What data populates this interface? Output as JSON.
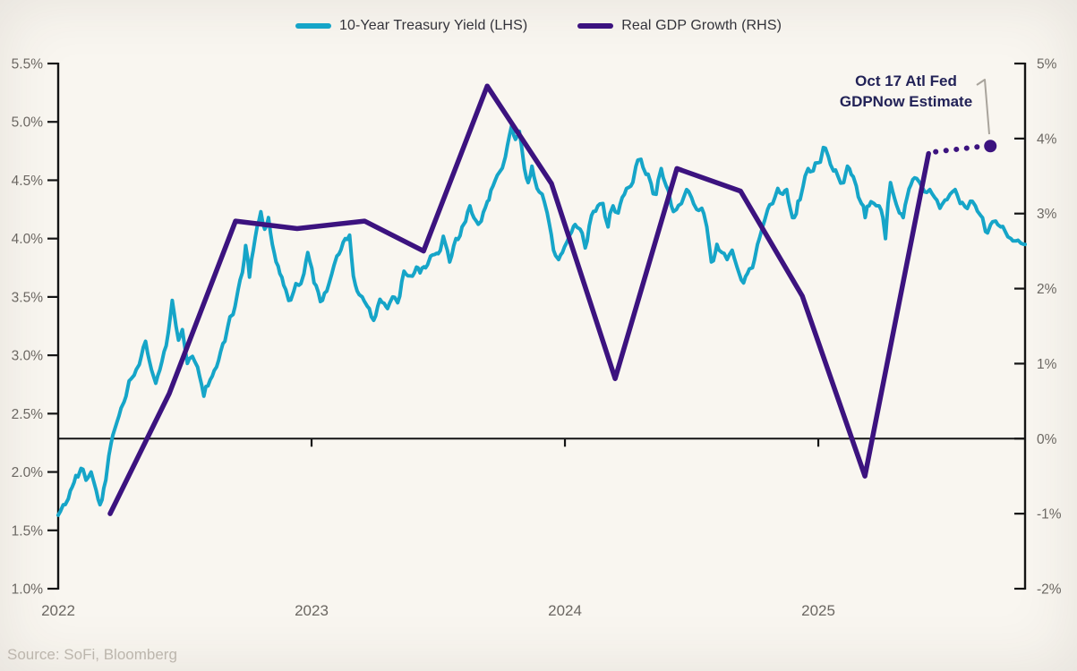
{
  "legend": {
    "items": [
      {
        "label": "10-Year Treasury Yield (LHS)",
        "color": "#16a5c8"
      },
      {
        "label": "Real GDP Growth (RHS)",
        "color": "#3c137f"
      }
    ]
  },
  "annotation": {
    "line1": "Oct 17 Atl Fed",
    "line2": "GDPNow Estimate",
    "color": "#222257"
  },
  "source": {
    "text": "Source: SoFi, Bloomberg"
  },
  "chart_data": {
    "type": "line",
    "title": "",
    "background": "#f9f6f0",
    "grid": false,
    "legend_position": "top-center",
    "x_axis": {
      "domain_years_from_2022": [
        0,
        3.816
      ],
      "ticks": [
        {
          "t": 0,
          "label": "2022"
        },
        {
          "t": 1,
          "label": "2023"
        },
        {
          "t": 2,
          "label": "2024"
        },
        {
          "t": 3,
          "label": "2025"
        }
      ],
      "tick_color": "#6b6762"
    },
    "left_axis": {
      "series": "10-Year Treasury Yield (LHS)",
      "min": 1.0,
      "max": 5.5,
      "ticks": [
        {
          "v": 5.5,
          "label": "5.5%"
        },
        {
          "v": 5.0,
          "label": "5.0%"
        },
        {
          "v": 4.5,
          "label": "4.5%"
        },
        {
          "v": 4.0,
          "label": "4.0%"
        },
        {
          "v": 3.5,
          "label": "3.5%"
        },
        {
          "v": 3.0,
          "label": "3.0%"
        },
        {
          "v": 2.5,
          "label": "2.5%"
        },
        {
          "v": 2.0,
          "label": "2.0%"
        },
        {
          "v": 1.5,
          "label": "1.5%"
        },
        {
          "v": 1.0,
          "label": "1.0%"
        }
      ]
    },
    "right_axis": {
      "series": "Real GDP Growth (RHS)",
      "min": -2,
      "max": 5,
      "zero_line": true,
      "ticks": [
        {
          "v": 5,
          "label": "5%"
        },
        {
          "v": 4,
          "label": "4%"
        },
        {
          "v": 3,
          "label": "3%"
        },
        {
          "v": 2,
          "label": "2%"
        },
        {
          "v": 1,
          "label": "1%"
        },
        {
          "v": 0,
          "label": "0%"
        },
        {
          "v": -1,
          "label": "-1%"
        },
        {
          "v": -2,
          "label": "-2%"
        }
      ]
    },
    "series": [
      {
        "name": "10-Year Treasury Yield (LHS)",
        "axis": "left",
        "color": "#16a5c8",
        "style": "solid",
        "width": 4,
        "points": [
          [
            0.0,
            1.63
          ],
          [
            0.02,
            1.72
          ],
          [
            0.04,
            1.77
          ],
          [
            0.055,
            1.87
          ],
          [
            0.07,
            1.97
          ],
          [
            0.09,
            2.03
          ],
          [
            0.11,
            1.93
          ],
          [
            0.13,
            2.0
          ],
          [
            0.15,
            1.84
          ],
          [
            0.165,
            1.72
          ],
          [
            0.18,
            1.86
          ],
          [
            0.2,
            2.14
          ],
          [
            0.225,
            2.38
          ],
          [
            0.24,
            2.48
          ],
          [
            0.26,
            2.6
          ],
          [
            0.28,
            2.78
          ],
          [
            0.3,
            2.83
          ],
          [
            0.32,
            2.92
          ],
          [
            0.345,
            3.12
          ],
          [
            0.36,
            2.95
          ],
          [
            0.385,
            2.76
          ],
          [
            0.41,
            2.95
          ],
          [
            0.435,
            3.2
          ],
          [
            0.45,
            3.47
          ],
          [
            0.465,
            3.25
          ],
          [
            0.475,
            3.13
          ],
          [
            0.49,
            3.22
          ],
          [
            0.51,
            2.93
          ],
          [
            0.53,
            2.99
          ],
          [
            0.55,
            2.9
          ],
          [
            0.575,
            2.65
          ],
          [
            0.6,
            2.79
          ],
          [
            0.625,
            2.9
          ],
          [
            0.65,
            3.1
          ],
          [
            0.67,
            3.25
          ],
          [
            0.69,
            3.35
          ],
          [
            0.71,
            3.56
          ],
          [
            0.727,
            3.71
          ],
          [
            0.74,
            3.94
          ],
          [
            0.755,
            3.67
          ],
          [
            0.77,
            3.9
          ],
          [
            0.785,
            4.1
          ],
          [
            0.8,
            4.23
          ],
          [
            0.815,
            4.08
          ],
          [
            0.83,
            4.18
          ],
          [
            0.845,
            3.95
          ],
          [
            0.86,
            3.8
          ],
          [
            0.875,
            3.7
          ],
          [
            0.89,
            3.6
          ],
          [
            0.91,
            3.47
          ],
          [
            0.93,
            3.55
          ],
          [
            0.95,
            3.6
          ],
          [
            0.97,
            3.7
          ],
          [
            0.985,
            3.88
          ],
          [
            1.01,
            3.62
          ],
          [
            1.035,
            3.46
          ],
          [
            1.06,
            3.55
          ],
          [
            1.08,
            3.7
          ],
          [
            1.1,
            3.85
          ],
          [
            1.125,
            3.97
          ],
          [
            1.15,
            4.03
          ],
          [
            1.165,
            3.68
          ],
          [
            1.18,
            3.55
          ],
          [
            1.2,
            3.5
          ],
          [
            1.22,
            3.42
          ],
          [
            1.245,
            3.3
          ],
          [
            1.27,
            3.48
          ],
          [
            1.3,
            3.4
          ],
          [
            1.32,
            3.5
          ],
          [
            1.34,
            3.45
          ],
          [
            1.365,
            3.72
          ],
          [
            1.39,
            3.68
          ],
          [
            1.42,
            3.75
          ],
          [
            1.45,
            3.75
          ],
          [
            1.47,
            3.85
          ],
          [
            1.5,
            3.87
          ],
          [
            1.52,
            4.02
          ],
          [
            1.545,
            3.8
          ],
          [
            1.57,
            4.0
          ],
          [
            1.6,
            4.12
          ],
          [
            1.625,
            4.28
          ],
          [
            1.65,
            4.15
          ],
          [
            1.67,
            4.15
          ],
          [
            1.7,
            4.33
          ],
          [
            1.725,
            4.5
          ],
          [
            1.745,
            4.58
          ],
          [
            1.765,
            4.7
          ],
          [
            1.79,
            4.97
          ],
          [
            1.805,
            4.85
          ],
          [
            1.82,
            4.92
          ],
          [
            1.84,
            4.6
          ],
          [
            1.855,
            4.48
          ],
          [
            1.87,
            4.62
          ],
          [
            1.89,
            4.43
          ],
          [
            1.91,
            4.38
          ],
          [
            1.93,
            4.22
          ],
          [
            1.955,
            3.9
          ],
          [
            1.975,
            3.82
          ],
          [
            1.99,
            3.88
          ],
          [
            2.01,
            3.98
          ],
          [
            2.04,
            4.12
          ],
          [
            2.06,
            4.08
          ],
          [
            2.08,
            3.92
          ],
          [
            2.105,
            4.2
          ],
          [
            2.13,
            4.28
          ],
          [
            2.15,
            4.3
          ],
          [
            2.17,
            4.1
          ],
          [
            2.19,
            4.28
          ],
          [
            2.21,
            4.22
          ],
          [
            2.235,
            4.38
          ],
          [
            2.26,
            4.45
          ],
          [
            2.28,
            4.62
          ],
          [
            2.3,
            4.68
          ],
          [
            2.32,
            4.55
          ],
          [
            2.34,
            4.47
          ],
          [
            2.36,
            4.38
          ],
          [
            2.38,
            4.6
          ],
          [
            2.4,
            4.45
          ],
          [
            2.42,
            4.28
          ],
          [
            2.44,
            4.25
          ],
          [
            2.46,
            4.3
          ],
          [
            2.48,
            4.42
          ],
          [
            2.5,
            4.35
          ],
          [
            2.52,
            4.25
          ],
          [
            2.54,
            4.26
          ],
          [
            2.56,
            4.1
          ],
          [
            2.578,
            3.8
          ],
          [
            2.6,
            3.95
          ],
          [
            2.62,
            3.88
          ],
          [
            2.64,
            3.82
          ],
          [
            2.66,
            3.9
          ],
          [
            2.68,
            3.75
          ],
          [
            2.705,
            3.62
          ],
          [
            2.72,
            3.7
          ],
          [
            2.74,
            3.75
          ],
          [
            2.76,
            3.95
          ],
          [
            2.78,
            4.1
          ],
          [
            2.8,
            4.25
          ],
          [
            2.82,
            4.3
          ],
          [
            2.84,
            4.43
          ],
          [
            2.86,
            4.38
          ],
          [
            2.875,
            4.42
          ],
          [
            2.89,
            4.25
          ],
          [
            2.905,
            4.18
          ],
          [
            2.92,
            4.32
          ],
          [
            2.94,
            4.45
          ],
          [
            2.96,
            4.6
          ],
          [
            2.98,
            4.58
          ],
          [
            3.0,
            4.65
          ],
          [
            3.02,
            4.78
          ],
          [
            3.04,
            4.7
          ],
          [
            3.06,
            4.58
          ],
          [
            3.08,
            4.52
          ],
          [
            3.1,
            4.48
          ],
          [
            3.115,
            4.62
          ],
          [
            3.13,
            4.55
          ],
          [
            3.15,
            4.45
          ],
          [
            3.17,
            4.3
          ],
          [
            3.185,
            4.18
          ],
          [
            3.2,
            4.28
          ],
          [
            3.22,
            4.3
          ],
          [
            3.24,
            4.28
          ],
          [
            3.255,
            4.18
          ],
          [
            3.265,
            4.0
          ],
          [
            3.275,
            4.3
          ],
          [
            3.285,
            4.48
          ],
          [
            3.3,
            4.35
          ],
          [
            3.32,
            4.22
          ],
          [
            3.335,
            4.18
          ],
          [
            3.35,
            4.35
          ],
          [
            3.365,
            4.46
          ],
          [
            3.38,
            4.52
          ],
          [
            3.4,
            4.48
          ],
          [
            3.42,
            4.4
          ],
          [
            3.44,
            4.42
          ],
          [
            3.46,
            4.35
          ],
          [
            3.48,
            4.26
          ],
          [
            3.5,
            4.33
          ],
          [
            3.52,
            4.38
          ],
          [
            3.54,
            4.42
          ],
          [
            3.56,
            4.3
          ],
          [
            3.58,
            4.27
          ],
          [
            3.6,
            4.32
          ],
          [
            3.62,
            4.28
          ],
          [
            3.64,
            4.2
          ],
          [
            3.66,
            4.06
          ],
          [
            3.68,
            4.12
          ],
          [
            3.7,
            4.15
          ],
          [
            3.72,
            4.1
          ],
          [
            3.74,
            4.05
          ],
          [
            3.76,
            4.0
          ],
          [
            3.78,
            3.98
          ],
          [
            3.8,
            3.96
          ],
          [
            3.816,
            3.95
          ]
        ]
      },
      {
        "name": "Real GDP Growth (RHS)",
        "axis": "right",
        "color": "#3c137f",
        "style": "solid",
        "width": 5.5,
        "points": [
          {
            "quarter": "Q1 2022",
            "t": 0.205,
            "value": -1.0
          },
          {
            "quarter": "Q2 2022",
            "t": 0.438,
            "value": 0.6
          },
          {
            "quarter": "Q3 2022",
            "t": 0.7,
            "value": 2.9
          },
          {
            "quarter": "Q4 2022",
            "t": 0.943,
            "value": 2.8
          },
          {
            "quarter": "Q1 2023",
            "t": 1.209,
            "value": 2.9
          },
          {
            "quarter": "Q2 2023",
            "t": 1.442,
            "value": 2.5
          },
          {
            "quarter": "Q3 2023",
            "t": 1.693,
            "value": 4.7
          },
          {
            "quarter": "Q4 2023",
            "t": 1.947,
            "value": 3.4
          },
          {
            "quarter": "Q1 2024",
            "t": 2.198,
            "value": 0.8
          },
          {
            "quarter": "Q2 2024",
            "t": 2.442,
            "value": 3.6
          },
          {
            "quarter": "Q3 2024",
            "t": 2.693,
            "value": 3.3
          },
          {
            "quarter": "Q4 2024",
            "t": 2.937,
            "value": 1.9
          },
          {
            "quarter": "Q1 2025",
            "t": 3.184,
            "value": -0.5
          },
          {
            "quarter": "Q2 2025",
            "t": 3.435,
            "value": 3.8
          }
        ]
      },
      {
        "name": "Oct 17 Atl Fed GDPNow Estimate",
        "axis": "right",
        "color": "#3c137f",
        "style": "dotted",
        "width": 6,
        "end_marker": true,
        "points": [
          {
            "quarter": "Q2 2025",
            "t": 3.435,
            "value": 3.8
          },
          {
            "quarter": "Q3 2025 (GDPNow est.)",
            "t": 3.679,
            "value": 3.9
          }
        ]
      }
    ],
    "axis_line_color": "#141414",
    "axis_label_color": "#6b6762",
    "callout_line_color": "#a9a49c"
  }
}
